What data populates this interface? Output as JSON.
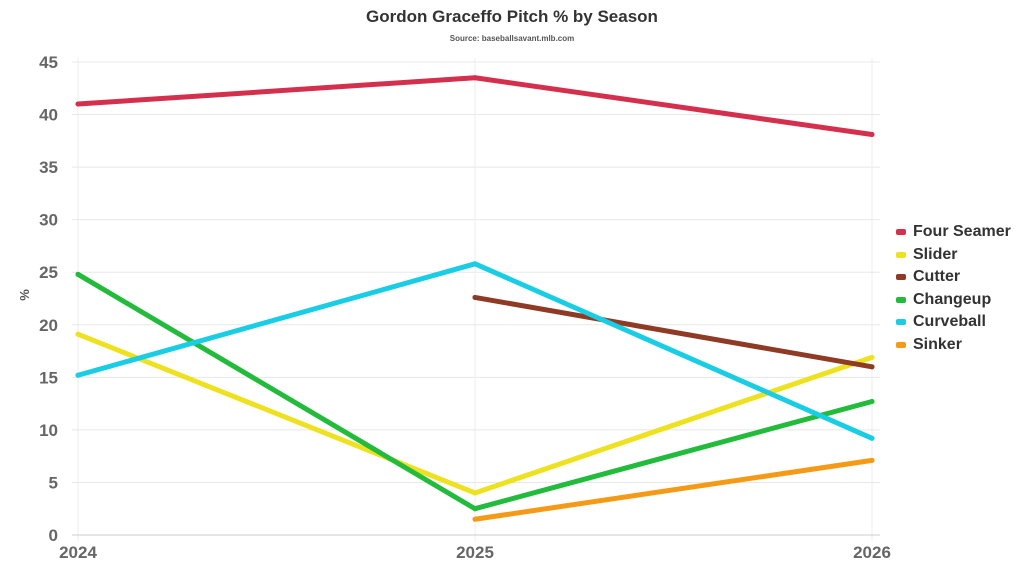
{
  "chart_data": {
    "type": "line",
    "title": "Gordon Graceffo Pitch % by Season",
    "subtitle": "Source: baseballsavant.mlb.com",
    "xlabel": "",
    "ylabel": "%",
    "categories": [
      "2024",
      "2025",
      "2026"
    ],
    "ylim": [
      0,
      45
    ],
    "yticks": [
      0,
      5,
      10,
      15,
      20,
      25,
      30,
      35,
      40,
      45
    ],
    "grid": true,
    "legend_position": "right",
    "series": [
      {
        "name": "Four Seamer",
        "color": "#d52f4e",
        "values": [
          41.0,
          43.5,
          38.1
        ]
      },
      {
        "name": "Slider",
        "color": "#eee120",
        "values": [
          19.1,
          4.0,
          16.9
        ]
      },
      {
        "name": "Cutter",
        "color": "#8e3a25",
        "values": [
          null,
          22.6,
          16.0
        ]
      },
      {
        "name": "Changeup",
        "color": "#22bb3b",
        "values": [
          24.8,
          2.5,
          12.7
        ]
      },
      {
        "name": "Curveball",
        "color": "#19cde5",
        "values": [
          15.2,
          25.8,
          9.2
        ]
      },
      {
        "name": "Sinker",
        "color": "#f59a16",
        "values": [
          null,
          1.5,
          7.1
        ]
      }
    ]
  }
}
